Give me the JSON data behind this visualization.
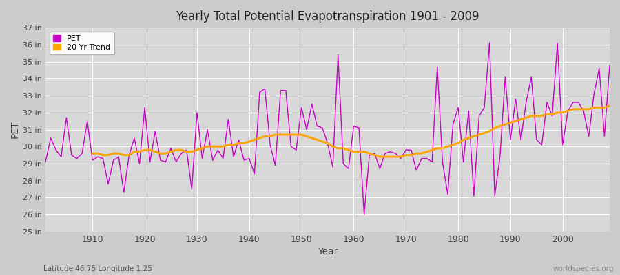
{
  "title": "Yearly Total Potential Evapotranspiration 1901 - 2009",
  "xlabel": "Year",
  "ylabel": "PET",
  "subtitle_left": "Latitude 46.75 Longitude 1.25",
  "subtitle_right": "worldspecies.org",
  "pet_color": "#cc00cc",
  "trend_color": "#ffa500",
  "fig_bg_color": "#cccccc",
  "plot_bg_color": "#d8d8d8",
  "grid_color": "#ffffff",
  "ylim_min": 25,
  "ylim_max": 37,
  "xlim_min": 1901,
  "xlim_max": 2009,
  "years": [
    1901,
    1902,
    1903,
    1904,
    1905,
    1906,
    1907,
    1908,
    1909,
    1910,
    1911,
    1912,
    1913,
    1914,
    1915,
    1916,
    1917,
    1918,
    1919,
    1920,
    1921,
    1922,
    1923,
    1924,
    1925,
    1926,
    1927,
    1928,
    1929,
    1930,
    1931,
    1932,
    1933,
    1934,
    1935,
    1936,
    1937,
    1938,
    1939,
    1940,
    1941,
    1942,
    1943,
    1944,
    1945,
    1946,
    1947,
    1948,
    1949,
    1950,
    1951,
    1952,
    1953,
    1954,
    1955,
    1956,
    1957,
    1958,
    1959,
    1960,
    1961,
    1962,
    1963,
    1964,
    1965,
    1966,
    1967,
    1968,
    1969,
    1970,
    1971,
    1972,
    1973,
    1974,
    1975,
    1976,
    1977,
    1978,
    1979,
    1980,
    1981,
    1982,
    1983,
    1984,
    1985,
    1986,
    1987,
    1988,
    1989,
    1990,
    1991,
    1992,
    1993,
    1994,
    1995,
    1996,
    1997,
    1998,
    1999,
    2000,
    2001,
    2002,
    2003,
    2004,
    2005,
    2006,
    2007,
    2008,
    2009
  ],
  "pet_values": [
    29.1,
    30.5,
    29.8,
    29.4,
    31.7,
    29.5,
    29.3,
    29.6,
    31.5,
    29.2,
    29.4,
    29.3,
    27.8,
    29.2,
    29.4,
    27.3,
    29.5,
    30.5,
    29.0,
    32.3,
    29.1,
    30.9,
    29.2,
    29.1,
    29.9,
    29.1,
    29.6,
    29.8,
    27.5,
    32.0,
    29.3,
    31.0,
    29.2,
    29.8,
    29.3,
    31.6,
    29.4,
    30.4,
    29.2,
    29.3,
    28.4,
    33.2,
    33.4,
    30.1,
    28.9,
    33.3,
    33.3,
    30.0,
    29.8,
    32.3,
    31.0,
    32.5,
    31.2,
    31.1,
    30.2,
    28.8,
    35.4,
    29.0,
    28.7,
    31.2,
    31.1,
    26.0,
    29.5,
    29.6,
    28.7,
    29.6,
    29.7,
    29.6,
    29.3,
    29.8,
    29.8,
    28.6,
    29.3,
    29.3,
    29.1,
    34.7,
    29.1,
    27.2,
    31.3,
    32.3,
    29.1,
    32.1,
    27.1,
    31.8,
    32.3,
    36.1,
    27.1,
    29.4,
    34.1,
    30.4,
    32.8,
    30.4,
    32.6,
    34.1,
    30.4,
    30.1,
    32.6,
    31.8,
    36.1,
    30.1,
    32.1,
    32.6,
    32.6,
    32.1,
    30.6,
    33.1,
    34.6,
    30.6,
    34.8
  ],
  "trend_years": [
    1910,
    1911,
    1912,
    1913,
    1914,
    1915,
    1916,
    1917,
    1918,
    1919,
    1920,
    1921,
    1922,
    1923,
    1924,
    1925,
    1926,
    1927,
    1928,
    1929,
    1930,
    1931,
    1932,
    1933,
    1934,
    1935,
    1936,
    1937,
    1938,
    1939,
    1940,
    1941,
    1942,
    1943,
    1944,
    1945,
    1946,
    1947,
    1948,
    1949,
    1950,
    1951,
    1952,
    1953,
    1954,
    1955,
    1956,
    1957,
    1958,
    1959,
    1960,
    1961,
    1962,
    1963,
    1964,
    1965,
    1966,
    1967,
    1968,
    1969,
    1970,
    1971,
    1972,
    1973,
    1974,
    1975,
    1976,
    1977,
    1978,
    1979,
    1980,
    1981,
    1982,
    1983,
    1984,
    1985,
    1986,
    1987,
    1988,
    1989,
    1990,
    1991,
    1992,
    1993,
    1994,
    1995,
    1996,
    1997,
    1998,
    1999,
    2000,
    2001,
    2002,
    2003,
    2004,
    2005,
    2006,
    2007,
    2008,
    2009
  ],
  "trend_values": [
    29.6,
    29.6,
    29.5,
    29.5,
    29.6,
    29.6,
    29.5,
    29.5,
    29.7,
    29.7,
    29.8,
    29.8,
    29.7,
    29.6,
    29.6,
    29.7,
    29.8,
    29.8,
    29.7,
    29.7,
    29.8,
    29.9,
    30.0,
    30.0,
    30.0,
    30.0,
    30.1,
    30.1,
    30.2,
    30.2,
    30.3,
    30.4,
    30.5,
    30.6,
    30.6,
    30.7,
    30.7,
    30.7,
    30.7,
    30.7,
    30.7,
    30.6,
    30.5,
    30.4,
    30.3,
    30.2,
    30.0,
    29.9,
    29.9,
    29.8,
    29.7,
    29.7,
    29.7,
    29.6,
    29.5,
    29.4,
    29.4,
    29.4,
    29.4,
    29.4,
    29.5,
    29.5,
    29.6,
    29.6,
    29.7,
    29.8,
    29.9,
    29.9,
    30.0,
    30.1,
    30.2,
    30.4,
    30.5,
    30.6,
    30.7,
    30.8,
    30.9,
    31.1,
    31.2,
    31.3,
    31.4,
    31.5,
    31.6,
    31.7,
    31.8,
    31.8,
    31.8,
    31.9,
    31.9,
    32.0,
    32.0,
    32.1,
    32.2,
    32.2,
    32.2,
    32.2,
    32.3,
    32.3,
    32.3,
    32.4
  ]
}
